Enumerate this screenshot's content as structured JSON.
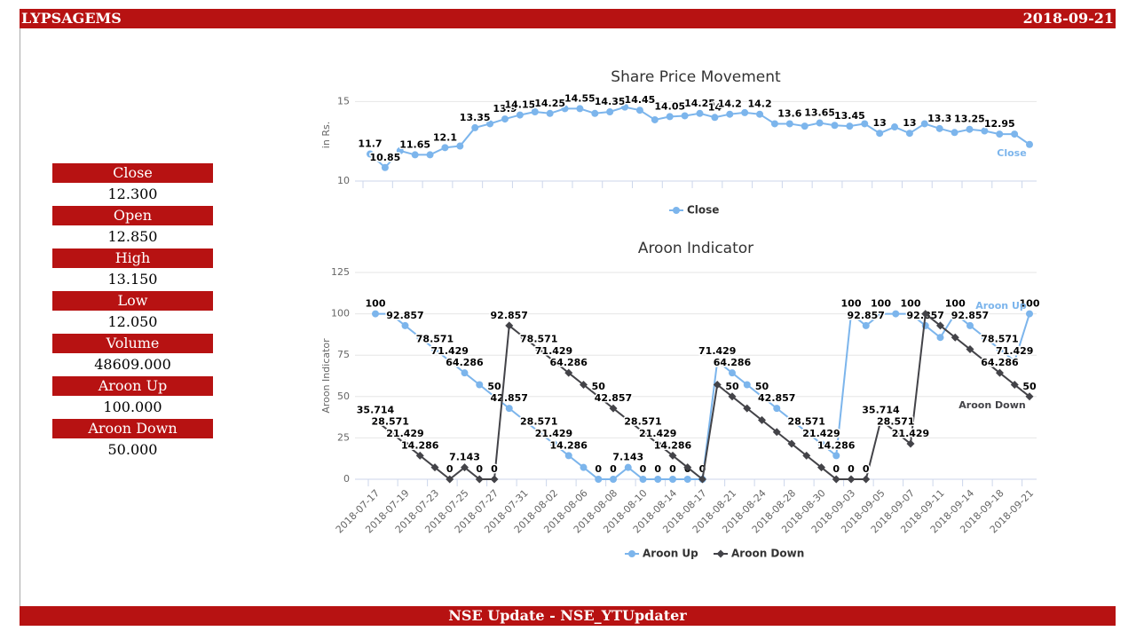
{
  "header": {
    "title": "LYPSAGEMS",
    "date": "2018-09-21"
  },
  "sidebar": [
    {
      "label": "Close",
      "value": "12.300"
    },
    {
      "label": "Open",
      "value": "12.850"
    },
    {
      "label": "High",
      "value": "13.150"
    },
    {
      "label": "Low",
      "value": "12.050"
    },
    {
      "label": "Volume",
      "value": "48609.000"
    },
    {
      "label": "Aroon Up",
      "value": "100.000"
    },
    {
      "label": "Aroon Down",
      "value": "50.000"
    }
  ],
  "footer": "NSE Update - NSE_YTUpdater",
  "chart_data": [
    {
      "type": "line",
      "title": "Share Price Movement",
      "y_label": "in Rs.",
      "ylim": [
        10,
        15.8
      ],
      "yticks": [
        10,
        15
      ],
      "grid": true,
      "series": [
        {
          "name": "Close",
          "color": "#7cb5ec",
          "marker": "circle",
          "values": [
            11.7,
            10.85,
            11.9,
            11.65,
            11.65,
            12.1,
            12.2,
            13.35,
            13.6,
            13.9,
            14.15,
            14.35,
            14.25,
            14.55,
            14.55,
            14.25,
            14.35,
            14.65,
            14.45,
            13.85,
            14.05,
            14.1,
            14.25,
            14,
            14.2,
            14.3,
            14.2,
            13.6,
            13.6,
            13.45,
            13.65,
            13.5,
            13.45,
            13.6,
            13,
            13.4,
            13,
            13.6,
            13.3,
            13.05,
            13.25,
            13.15,
            12.95,
            12.95,
            12.3
          ],
          "value_labels": [
            "11.7",
            "10.85",
            null,
            "11.65",
            null,
            "12.1",
            null,
            "13.35",
            null,
            "13.9",
            "14.15",
            null,
            "14.25",
            null,
            "14.55",
            null,
            "14.35",
            null,
            "14.45",
            null,
            "14.05",
            null,
            "14.25",
            "14",
            "14.2",
            null,
            "14.2",
            null,
            "13.6",
            null,
            "13.65",
            null,
            "13.45",
            null,
            "13",
            null,
            "13",
            null,
            "13.3",
            null,
            "13.25",
            null,
            "12.95",
            null,
            null
          ]
        }
      ]
    },
    {
      "type": "line",
      "title": "Aroon Indicator",
      "y_label": "Aroon Indicator",
      "ylim": [
        0,
        125
      ],
      "yticks": [
        0,
        25,
        50,
        75,
        100,
        125
      ],
      "grid": true,
      "categories": [
        "2018-07-17",
        null,
        "2018-07-19",
        null,
        "2018-07-23",
        null,
        "2018-07-25",
        null,
        "2018-07-27",
        null,
        "2018-07-31",
        null,
        "2018-08-02",
        null,
        "2018-08-06",
        null,
        "2018-08-08",
        null,
        "2018-08-10",
        null,
        "2018-08-14",
        null,
        "2018-08-17",
        null,
        "2018-08-21",
        null,
        "2018-08-24",
        null,
        "2018-08-28",
        null,
        "2018-08-30",
        null,
        "2018-09-03",
        null,
        "2018-09-05",
        null,
        "2018-09-07",
        null,
        "2018-09-11",
        null,
        "2018-09-14",
        null,
        "2018-09-18",
        null,
        "2018-09-21"
      ],
      "series": [
        {
          "name": "Aroon Up",
          "color": "#7cb5ec",
          "marker": "circle",
          "values": [
            100,
            100,
            92.857,
            85.714,
            78.571,
            71.429,
            64.286,
            57.143,
            50,
            42.857,
            35.714,
            28.571,
            21.429,
            14.286,
            7.143,
            0,
            0,
            7.143,
            0,
            0,
            0,
            0,
            0,
            71.429,
            64.286,
            57.143,
            50,
            42.857,
            35.714,
            28.571,
            21.429,
            14.286,
            100,
            92.857,
            100,
            100,
            100,
            92.857,
            85.714,
            100,
            92.857,
            85.714,
            78.571,
            71.429,
            100
          ],
          "value_labels": [
            "100",
            null,
            "92.857",
            null,
            "78.571",
            "71.429",
            "64.286",
            null,
            "50",
            "42.857",
            null,
            "28.571",
            "21.429",
            "14.286",
            null,
            "0",
            "0",
            "7.143",
            "0",
            "0",
            "0",
            "0",
            "0",
            "71.429",
            "64.286",
            null,
            "50",
            "42.857",
            null,
            "28.571",
            "21.429",
            "14.286",
            "100",
            "92.857",
            "100",
            null,
            "100",
            "92.857",
            null,
            "100",
            "92.857",
            null,
            "78.571",
            "71.429",
            "100"
          ]
        },
        {
          "name": "Aroon Down",
          "color": "#434348",
          "marker": "diamond",
          "values": [
            35.714,
            28.571,
            21.429,
            14.286,
            7.143,
            0,
            7.143,
            0,
            0,
            92.857,
            85.714,
            78.571,
            71.429,
            64.286,
            57.143,
            50,
            42.857,
            35.714,
            28.571,
            21.429,
            14.286,
            7.143,
            0,
            57.143,
            50,
            42.857,
            35.714,
            28.571,
            21.429,
            14.286,
            7.143,
            0,
            0,
            0,
            35.714,
            28.571,
            21.429,
            100,
            92.857,
            85.714,
            78.571,
            71.429,
            64.286,
            57.143,
            50
          ],
          "value_labels": [
            "35.714",
            "28.571",
            "21.429",
            "14.286",
            null,
            "0",
            "7.143",
            "0",
            "0",
            "92.857",
            null,
            "78.571",
            "71.429",
            "64.286",
            null,
            "50",
            "42.857",
            null,
            "28.571",
            "21.429",
            "14.286",
            null,
            null,
            null,
            "50",
            null,
            null,
            null,
            null,
            null,
            null,
            "0",
            "0",
            "0",
            "35.714",
            "28.571",
            "21.429",
            null,
            null,
            null,
            null,
            null,
            "64.286",
            null,
            "50"
          ]
        }
      ]
    }
  ]
}
